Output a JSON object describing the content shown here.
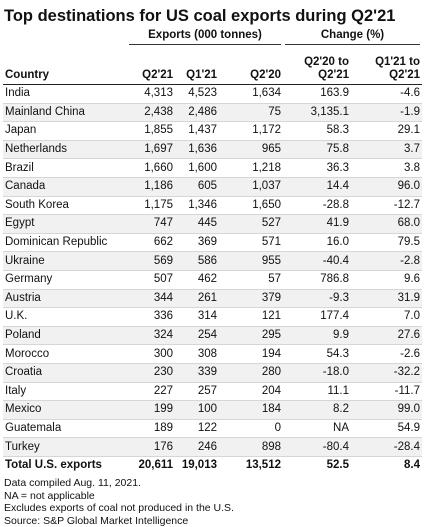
{
  "title": "Top destinations for US coal exports during Q2'21",
  "table": {
    "group_headers": [
      "Exports (000 tonnes)",
      "Change (%)"
    ],
    "columns": [
      "Country",
      "Q2'21",
      "Q1'21",
      "Q2'20",
      "Q2'20 to Q2'21",
      "Q1'21 to Q2'21"
    ],
    "rows": [
      [
        "India",
        "4,313",
        "4,523",
        "1,634",
        "163.9",
        "-4.6"
      ],
      [
        "Mainland China",
        "2,438",
        "2,486",
        "75",
        "3,135.1",
        "-1.9"
      ],
      [
        "Japan",
        "1,855",
        "1,437",
        "1,172",
        "58.3",
        "29.1"
      ],
      [
        "Netherlands",
        "1,697",
        "1,636",
        "965",
        "75.8",
        "3.7"
      ],
      [
        "Brazil",
        "1,660",
        "1,600",
        "1,218",
        "36.3",
        "3.8"
      ],
      [
        "Canada",
        "1,186",
        "605",
        "1,037",
        "14.4",
        "96.0"
      ],
      [
        "South Korea",
        "1,175",
        "1,346",
        "1,650",
        "-28.8",
        "-12.7"
      ],
      [
        "Egypt",
        "747",
        "445",
        "527",
        "41.9",
        "68.0"
      ],
      [
        "Dominican Republic",
        "662",
        "369",
        "571",
        "16.0",
        "79.5"
      ],
      [
        "Ukraine",
        "569",
        "586",
        "955",
        "-40.4",
        "-2.8"
      ],
      [
        "Germany",
        "507",
        "462",
        "57",
        "786.8",
        "9.6"
      ],
      [
        "Austria",
        "344",
        "261",
        "379",
        "-9.3",
        "31.9"
      ],
      [
        "U.K.",
        "336",
        "314",
        "121",
        "177.4",
        "7.0"
      ],
      [
        "Poland",
        "324",
        "254",
        "295",
        "9.9",
        "27.6"
      ],
      [
        "Morocco",
        "300",
        "308",
        "194",
        "54.3",
        "-2.6"
      ],
      [
        "Croatia",
        "230",
        "339",
        "280",
        "-18.0",
        "-32.2"
      ],
      [
        "Italy",
        "227",
        "257",
        "204",
        "11.1",
        "-11.7"
      ],
      [
        "Mexico",
        "199",
        "100",
        "184",
        "8.2",
        "99.0"
      ],
      [
        "Guatemala",
        "189",
        "122",
        "0",
        "NA",
        "54.9"
      ],
      [
        "Turkey",
        "176",
        "246",
        "898",
        "-80.4",
        "-28.4"
      ]
    ],
    "total": [
      "Total U.S. exports",
      "20,611",
      "19,013",
      "13,512",
      "52.5",
      "8.4"
    ]
  },
  "footnotes": [
    "Data compiled Aug. 11, 2021.",
    "NA = not applicable",
    "Excludes exports of coal not produced in the U.S.",
    "Source: S&P Global Market Intelligence"
  ]
}
